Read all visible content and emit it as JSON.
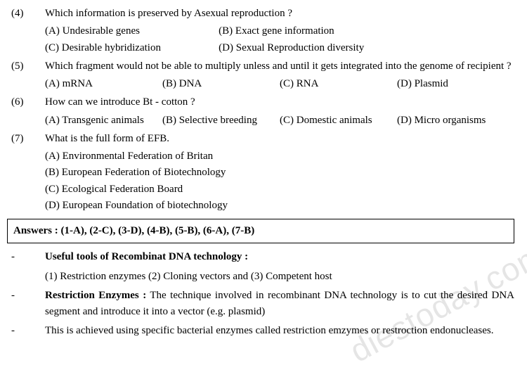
{
  "questions": [
    {
      "num": "(4)",
      "text": "Which information is preserved by Asexual reproduction ?",
      "layout": "2col",
      "options": [
        "(A) Undesirable genes",
        "(B) Exact gene information",
        "(C) Desirable hybridization",
        "(D) Sexual Reproduction diversity"
      ]
    },
    {
      "num": "(5)",
      "text": "Which fragment would not be able to multiply unless and until it gets integrated into the genome of recipient ?",
      "layout": "4col",
      "options": [
        "(A) mRNA",
        "(B) DNA",
        "(C) RNA",
        "(D) Plasmid"
      ]
    },
    {
      "num": "(6)",
      "text": "How can we introduce Bt - cotton ?",
      "layout": "4col",
      "options": [
        "(A) Transgenic animals",
        "(B) Selective breeding",
        "(C) Domestic animals",
        "(D) Micro organisms"
      ]
    },
    {
      "num": "(7)",
      "text": "What is the full form of EFB.",
      "layout": "1col",
      "options": [
        "(A) Environmental Federation of Britan",
        "(B) European Federation of Biotechnology",
        "(C) Ecological Federation Board",
        "(D) European Foundation of biotechnology"
      ]
    }
  ],
  "answers_label": "Answers :",
  "answers_text": "(1-A), (2-C), (3-D), (4-B), (5-B), (6-A), (7-B)",
  "notes": [
    {
      "dash": "-",
      "bold": "Useful tools of Recombinat DNA technology :",
      "text": ""
    },
    {
      "dash": "",
      "bold": "",
      "text": "(1) Restriction enzymes  (2) Cloning vectors and  (3) Competent host"
    },
    {
      "dash": "-",
      "bold": "Restriction Enzymes :",
      "text": " The technique involved in recombinant DNA technology is to cut the desired DNA segment and introduce it into a vector (e.g. plasmid)"
    },
    {
      "dash": "-",
      "bold": "",
      "text": "This is achieved using specific bacterial enzymes called restriction emzymes or restroction endonucleases."
    }
  ],
  "watermark": "diestoday.com"
}
